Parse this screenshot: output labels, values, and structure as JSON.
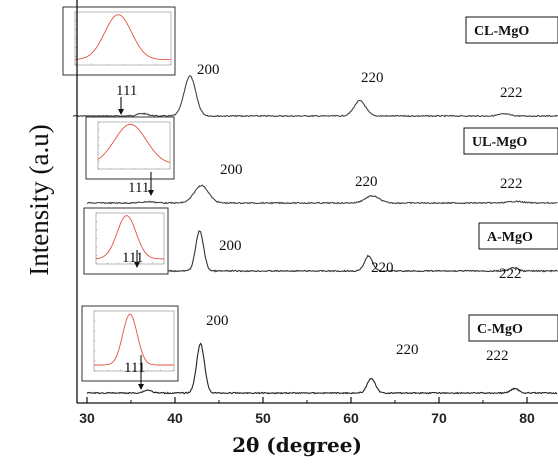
{
  "chart_data": {
    "type": "line",
    "xlabel": "2θ (degree)",
    "ylabel": "Intensity (a.u)",
    "xlim": [
      30,
      84
    ],
    "xticks": [
      "30",
      "40",
      "50",
      "60",
      "70",
      "80"
    ],
    "grid": false,
    "series": [
      {
        "name": "CL-MgO",
        "color": "#444444",
        "peaks": [
          {
            "label": "111",
            "x": 36.3,
            "height": 0.06
          },
          {
            "label": "200",
            "x": 41.7,
            "height": 1.0
          },
          {
            "label": "220",
            "x": 61.0,
            "height": 0.38
          },
          {
            "label": "222",
            "x": 77.4,
            "height": 0.05
          }
        ]
      },
      {
        "name": "UL-MgO",
        "color": "#444444",
        "peaks": [
          {
            "label": "111",
            "x": 37.0,
            "height": 0.04
          },
          {
            "label": "200",
            "x": 43.0,
            "height": 0.55
          },
          {
            "label": "220",
            "x": 62.4,
            "height": 0.22
          },
          {
            "label": "222",
            "x": 78.7,
            "height": 0.05
          }
        ]
      },
      {
        "name": "A-MgO",
        "color": "#333333",
        "peaks": [
          {
            "label": "111",
            "x": 36.9,
            "height": 0.06
          },
          {
            "label": "200",
            "x": 42.8,
            "height": 1.0
          },
          {
            "label": "220",
            "x": 62.0,
            "height": 0.38
          },
          {
            "label": "222",
            "x": 78.5,
            "height": 0.08
          }
        ]
      },
      {
        "name": "C-MgO",
        "color": "#222222",
        "peaks": [
          {
            "label": "111",
            "x": 36.9,
            "height": 0.06
          },
          {
            "label": "200",
            "x": 42.9,
            "height": 1.0
          },
          {
            "label": "220",
            "x": 62.3,
            "height": 0.3
          },
          {
            "label": "222",
            "x": 78.6,
            "height": 0.09
          }
        ]
      }
    ]
  }
}
